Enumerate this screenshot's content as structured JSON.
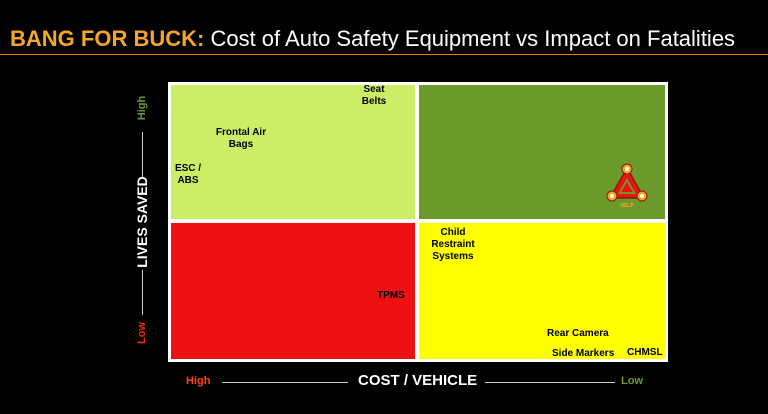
{
  "title": {
    "highlight": "BANG FOR BUCK:",
    "rest": "Cost of Auto Safety Equipment vs Impact on Fatalities"
  },
  "chart_data": {
    "type": "quadrant",
    "xlabel": "COST / VEHICLE",
    "ylabel": "LIVES SAVED",
    "x_ends": {
      "left": "High",
      "right": "Low"
    },
    "y_ends": {
      "bottom": "Low",
      "top": "High"
    },
    "quadrants": [
      {
        "position": "top-left",
        "color": "#ccee66"
      },
      {
        "position": "top-right",
        "color": "#6b9a2b"
      },
      {
        "position": "bottom-left",
        "color": "#ee1111"
      },
      {
        "position": "bottom-right",
        "color": "#ffff00"
      }
    ],
    "items": [
      {
        "label": "Seat Belts",
        "quadrant": "top-left"
      },
      {
        "label": "Frontal Air Bags",
        "quadrant": "top-left"
      },
      {
        "label": "ESC / ABS",
        "quadrant": "top-left"
      },
      {
        "label": "TPMS",
        "quadrant": "bottom-left"
      },
      {
        "label": "Child Restraint Systems",
        "quadrant": "bottom-right"
      },
      {
        "label": "Rear Camera",
        "quadrant": "bottom-right"
      },
      {
        "label": "Side Markers",
        "quadrant": "bottom-right"
      },
      {
        "label": "CHMSL",
        "quadrant": "bottom-right"
      }
    ],
    "logo": {
      "name": "help-triangle-logo",
      "text": "HELP",
      "quadrant": "top-right"
    },
    "colors": {
      "x_high": "#ff4500",
      "x_low": "#6b9a2b",
      "y_high": "#6b9a2b",
      "y_low": "#ff2a00"
    }
  }
}
